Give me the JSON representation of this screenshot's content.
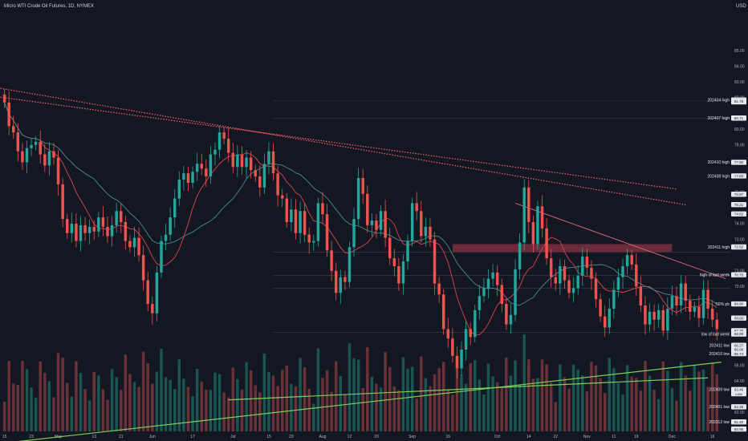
{
  "chart_data": {
    "type": "candlestick",
    "title": "Micro WTI Crude Oil Futures, 1D, NYMEX",
    "currency_label": "USD",
    "ylim": [
      60.8,
      87.5
    ],
    "y_ticks": [
      85.0,
      84.0,
      83.0,
      82.0,
      80.0,
      79.0,
      77.0,
      76.0,
      74.0,
      73.0,
      71.0,
      70.0,
      68.0,
      65.0,
      64.0,
      62.0
    ],
    "x_ticks": [
      {
        "label": "15",
        "t": 0
      },
      {
        "label": "23",
        "t": 6
      },
      {
        "label": "May",
        "t": 12
      },
      {
        "label": "13",
        "t": 20
      },
      {
        "label": "21",
        "t": 26
      },
      {
        "label": "Jun",
        "t": 33
      },
      {
        "label": "17",
        "t": 42
      },
      {
        "label": "Jul",
        "t": 51
      },
      {
        "label": "15",
        "t": 59
      },
      {
        "label": "23",
        "t": 64
      },
      {
        "label": "Aug",
        "t": 71
      },
      {
        "label": "12",
        "t": 77
      },
      {
        "label": "20",
        "t": 83
      },
      {
        "label": "Sep",
        "t": 91
      },
      {
        "label": "16",
        "t": 99
      },
      {
        "label": "Oct",
        "t": 110
      },
      {
        "label": "14",
        "t": 117
      },
      {
        "label": "22",
        "t": 123
      },
      {
        "label": "Nov",
        "t": 130
      },
      {
        "label": "11",
        "t": 136
      },
      {
        "label": "19",
        "t": 141
      },
      {
        "label": "Dec",
        "t": 149
      },
      {
        "label": "16",
        "t": 158
      }
    ],
    "candles": [
      [
        82.2,
        81.7
      ],
      [
        81.7,
        80.2
      ],
      [
        80.2,
        79.8
      ],
      [
        79.8,
        78.6
      ],
      [
        78.6,
        77.9
      ],
      [
        77.9,
        78.8
      ],
      [
        78.8,
        79.0
      ],
      [
        79.0,
        79.2
      ],
      [
        79.2,
        78.4
      ],
      [
        78.4,
        77.7
      ],
      [
        77.7,
        78.6
      ],
      [
        78.6,
        78.2
      ],
      [
        78.2,
        76.5
      ],
      [
        76.5,
        74.3
      ],
      [
        74.3,
        73.4
      ],
      [
        73.4,
        74.0
      ],
      [
        74.0,
        72.9
      ],
      [
        72.9,
        73.9
      ],
      [
        73.9,
        73.4
      ],
      [
        73.4,
        73.8
      ],
      [
        73.8,
        73.5
      ],
      [
        73.5,
        74.4
      ],
      [
        74.4,
        73.8
      ],
      [
        73.8,
        73.2
      ],
      [
        73.2,
        73.9
      ],
      [
        73.9,
        74.8
      ],
      [
        74.8,
        74.1
      ],
      [
        74.1,
        72.9
      ],
      [
        72.9,
        72.5
      ],
      [
        72.5,
        73.1
      ],
      [
        73.1,
        72.0
      ],
      [
        72.0,
        70.4
      ],
      [
        70.4,
        68.9
      ],
      [
        68.9,
        68.3
      ],
      [
        68.3,
        70.9
      ],
      [
        70.9,
        72.9
      ],
      [
        72.9,
        73.3
      ],
      [
        73.3,
        74.4
      ],
      [
        74.4,
        75.6
      ],
      [
        75.6,
        76.8
      ],
      [
        76.8,
        77.2
      ],
      [
        77.2,
        76.6
      ],
      [
        76.6,
        77.3
      ],
      [
        77.3,
        77.8
      ],
      [
        77.8,
        77.5
      ],
      [
        77.5,
        77.0
      ],
      [
        77.0,
        78.4
      ],
      [
        78.4,
        78.7
      ],
      [
        78.7,
        79.8
      ],
      [
        79.8,
        79.4
      ],
      [
        79.4,
        78.5
      ],
      [
        78.5,
        77.6
      ],
      [
        77.6,
        78.4
      ],
      [
        78.4,
        77.6
      ],
      [
        77.6,
        78.2
      ],
      [
        78.2,
        77.4
      ],
      [
        77.4,
        77.0
      ],
      [
        77.0,
        76.3
      ],
      [
        76.3,
        77.8
      ],
      [
        77.8,
        78.6
      ],
      [
        78.6,
        77.2
      ],
      [
        77.2,
        75.8
      ],
      [
        75.8,
        75.6
      ],
      [
        75.6,
        74.1
      ],
      [
        74.1,
        74.9
      ],
      [
        74.9,
        73.4
      ],
      [
        73.4,
        74.8
      ],
      [
        74.8,
        73.3
      ],
      [
        73.3,
        72.8
      ],
      [
        72.8,
        72.9
      ],
      [
        72.9,
        75.3
      ],
      [
        75.3,
        74.6
      ],
      [
        74.6,
        72.3
      ],
      [
        72.3,
        71.0
      ],
      [
        71.0,
        69.6
      ],
      [
        69.6,
        70.6
      ],
      [
        70.6,
        70.3
      ],
      [
        70.3,
        72.5
      ],
      [
        72.5,
        74.3
      ],
      [
        74.3,
        76.9
      ],
      [
        76.9,
        75.9
      ],
      [
        75.9,
        73.9
      ],
      [
        73.9,
        74.2
      ],
      [
        74.2,
        73.6
      ],
      [
        73.6,
        74.8
      ],
      [
        74.8,
        73.1
      ],
      [
        73.1,
        71.8
      ],
      [
        71.8,
        71.3
      ],
      [
        71.3,
        70.2
      ],
      [
        70.2,
        71.6
      ],
      [
        71.6,
        72.9
      ],
      [
        72.9,
        75.3
      ],
      [
        75.3,
        74.8
      ],
      [
        74.8,
        73.2
      ],
      [
        73.2,
        73.8
      ],
      [
        73.8,
        73.0
      ],
      [
        73.0,
        70.2
      ],
      [
        70.2,
        69.5
      ],
      [
        69.5,
        67.3
      ],
      [
        67.3,
        66.7
      ],
      [
        66.7,
        65.6
      ],
      [
        65.6,
        64.8
      ],
      [
        64.8,
        66.0
      ],
      [
        66.0,
        67.3
      ],
      [
        67.3,
        66.8
      ],
      [
        66.8,
        68.5
      ],
      [
        68.5,
        69.4
      ],
      [
        69.4,
        69.9
      ],
      [
        69.9,
        70.5
      ],
      [
        70.5,
        70.9
      ],
      [
        70.9,
        70.1
      ],
      [
        70.1,
        68.9
      ],
      [
        68.9,
        67.6
      ],
      [
        67.6,
        68.2
      ],
      [
        68.2,
        71.1
      ],
      [
        71.1,
        72.8
      ],
      [
        72.8,
        76.3
      ],
      [
        76.3,
        74.1
      ],
      [
        74.1,
        72.7
      ],
      [
        72.7,
        75.1
      ],
      [
        75.1,
        73.7
      ],
      [
        73.7,
        71.8
      ],
      [
        71.8,
        70.6
      ],
      [
        70.6,
        70.2
      ],
      [
        70.2,
        71.3
      ],
      [
        71.3,
        70.4
      ],
      [
        70.4,
        69.6
      ],
      [
        69.6,
        69.9
      ],
      [
        69.9,
        70.7
      ],
      [
        70.7,
        71.9
      ],
      [
        71.9,
        71.2
      ],
      [
        71.2,
        70.5
      ],
      [
        70.5,
        69.2
      ],
      [
        69.2,
        68.1
      ],
      [
        68.1,
        67.4
      ],
      [
        67.4,
        68.6
      ],
      [
        68.6,
        69.8
      ],
      [
        69.8,
        70.6
      ],
      [
        70.6,
        71.3
      ],
      [
        71.3,
        72.0
      ],
      [
        72.0,
        71.4
      ],
      [
        71.4,
        70.0
      ],
      [
        70.0,
        68.8
      ],
      [
        68.8,
        67.6
      ],
      [
        67.6,
        68.4
      ],
      [
        68.4,
        67.9
      ],
      [
        67.9,
        68.5
      ],
      [
        68.5,
        67.2
      ],
      [
        67.2,
        68.6
      ],
      [
        68.6,
        69.4
      ],
      [
        69.4,
        68.8
      ],
      [
        68.8,
        70.2
      ],
      [
        70.2,
        69.1
      ],
      [
        69.1,
        68.4
      ],
      [
        68.4,
        68.7
      ],
      [
        68.7,
        68.0
      ],
      [
        68.0,
        69.8
      ],
      [
        69.8,
        68.6
      ],
      [
        68.6,
        67.9
      ],
      [
        67.9,
        67.3
      ]
    ],
    "overlays": {
      "trendline_upper": {
        "from": [
          -5,
          82.8
        ],
        "to": [
          152,
          75.2
        ]
      },
      "trendline_lower": {
        "from": [
          -5,
          82.2
        ],
        "to": [
          150,
          76.2
        ]
      },
      "green_line_1": {
        "from": [
          -5,
          59.9
        ],
        "to": [
          160,
          65.2
        ]
      },
      "green_line_2": {
        "from": [
          50,
          62.8
        ],
        "to": [
          157,
          64.2
        ]
      },
      "resistance_zone": {
        "from": [
          100,
          72.7
        ],
        "to": [
          149,
          72.2
        ]
      },
      "pink_trend": {
        "from": [
          114,
          75.3
        ],
        "to": [
          161,
          70.5
        ]
      },
      "hline_gray": [
        81.8,
        80.7,
        72.2,
        70.7,
        69.9,
        67.1
      ],
      "ma_red": "smooth moving average",
      "ma_teal": "smooth moving average"
    },
    "levels": [
      {
        "label": "202404 high",
        "value": 81.86,
        "tag": "81.86"
      },
      {
        "label": "",
        "value": 81.74,
        "tag": "High"
      },
      {
        "label": "",
        "value": 81.78,
        "tag": "81.78"
      },
      {
        "label": "202407 high",
        "value": 80.71,
        "tag": "80.71"
      },
      {
        "label": "202410 high",
        "value": 77.9,
        "tag": "77.90"
      },
      {
        "label": "202408 high",
        "value": 77.03,
        "tag": "77.03"
      },
      {
        "label": "",
        "value": 75.87,
        "tag": "75.87"
      },
      {
        "label": "",
        "value": 75.21,
        "tag": "75.21"
      },
      {
        "label": "",
        "value": 74.62,
        "tag": "74.62"
      },
      {
        "label": "202411 high",
        "value": 72.52,
        "tag": "72.52"
      },
      {
        "label": "high of last week",
        "value": 70.75,
        "tag": "70.75"
      },
      {
        "label": "50% pb",
        "value": 68.9,
        "tag": "68.90"
      },
      {
        "label": "",
        "value": 68.0,
        "tag": "68.00"
      },
      {
        "label": "",
        "value": 67.2,
        "tag": "67.20"
      },
      {
        "label": "low of last week",
        "value": 66.99,
        "tag": "66.99"
      },
      {
        "label": "202411 low",
        "value": 66.27,
        "tag": "66.27"
      },
      {
        "label": "",
        "value": 66.0,
        "tag": "66.00"
      },
      {
        "label": "202410 low",
        "value": 65.74,
        "tag": "65.74"
      },
      {
        "label": "202409 low",
        "value": 63.46,
        "tag": "63.46"
      },
      {
        "label": "",
        "value": 63.19,
        "tag": "Low"
      },
      {
        "label": "202401 low",
        "value": 62.36,
        "tag": "62.36"
      },
      {
        "label": "202312 low",
        "value": 61.4,
        "tag": "61.40"
      },
      {
        "label": "",
        "value": 60.95,
        "tag": "60.95"
      }
    ],
    "volume_note": "volume bars overlaid at bottom"
  },
  "colors": {
    "background": "#131722",
    "up": "#26a69a",
    "down": "#ef5350",
    "vol_up": "#1e6b63",
    "vol_down": "#8a3b40",
    "grid_line": "#3a3f4d",
    "trend_red": "#f05b6b",
    "green": "#7ad15a",
    "zone": "#7a2f3e",
    "pink": "#e06b7b",
    "ma_red": "#d94452",
    "ma_teal": "#4a8c86"
  }
}
